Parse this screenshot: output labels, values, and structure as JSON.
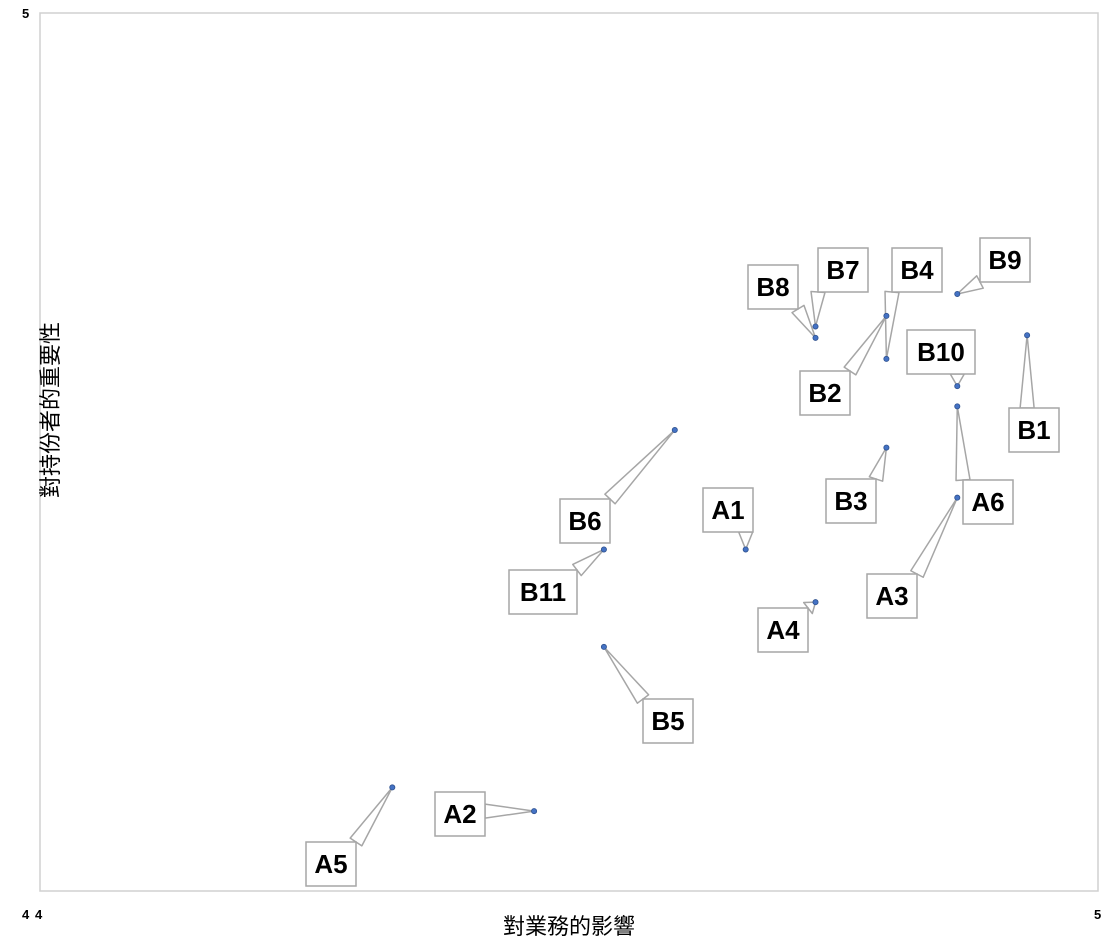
{
  "chart_data": {
    "type": "scatter",
    "title": "",
    "xlabel": "對業務的影響",
    "ylabel": "對持份者的重要性",
    "xlim": [
      4,
      5
    ],
    "ylim": [
      4,
      5
    ],
    "x_ticks": [
      "4",
      "5"
    ],
    "y_ticks": [
      "4",
      "5"
    ],
    "grid": false,
    "marker_color": "#4472C4",
    "points": [
      {
        "label": "A1",
        "x": 4.667,
        "y": 4.389
      },
      {
        "label": "A2",
        "x": 4.467,
        "y": 4.091
      },
      {
        "label": "A3",
        "x": 4.867,
        "y": 4.448
      },
      {
        "label": "A4",
        "x": 4.733,
        "y": 4.329
      },
      {
        "label": "A5",
        "x": 4.333,
        "y": 4.118
      },
      {
        "label": "A6",
        "x": 4.867,
        "y": 4.552
      },
      {
        "label": "B1",
        "x": 4.933,
        "y": 4.633
      },
      {
        "label": "B2",
        "x": 4.8,
        "y": 4.655
      },
      {
        "label": "B3",
        "x": 4.8,
        "y": 4.505
      },
      {
        "label": "B4",
        "x": 4.8,
        "y": 4.606
      },
      {
        "label": "B5",
        "x": 4.533,
        "y": 4.278
      },
      {
        "label": "B6",
        "x": 4.6,
        "y": 4.525
      },
      {
        "label": "B7",
        "x": 4.733,
        "y": 4.643
      },
      {
        "label": "B8",
        "x": 4.733,
        "y": 4.63
      },
      {
        "label": "B9",
        "x": 4.867,
        "y": 4.68
      },
      {
        "label": "B10",
        "x": 4.867,
        "y": 4.575
      },
      {
        "label": "B11",
        "x": 4.533,
        "y": 4.389
      }
    ]
  }
}
